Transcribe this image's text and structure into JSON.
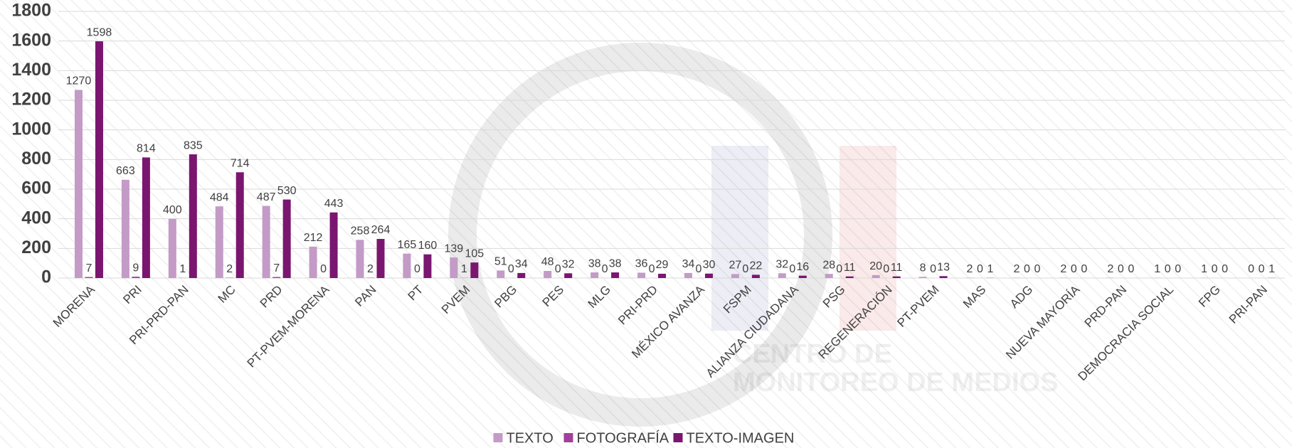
{
  "chart_data": {
    "type": "bar",
    "categories": [
      "MORENA",
      "PRI",
      "PRI-PRD-PAN",
      "MC",
      "PRD",
      "PT-PVEM-MORENA",
      "PAN",
      "PT",
      "PVEM",
      "PBG",
      "PES",
      "MLG",
      "PRI-PRD",
      "MÉXICO AVANZA",
      "FSPM",
      "ALIANZA CIUDADANA",
      "PSG",
      "REGENERACIÓN",
      "PT-PVEM",
      "MAS",
      "ADG",
      "NUEVA MAYORÍA",
      "PRD-PAN",
      "DEMOCRACIA SOCIAL",
      "FPG",
      "PRI-PAN"
    ],
    "series": [
      {
        "name": "TEXTO",
        "color": "#c39bc6",
        "values": [
          1270,
          663,
          400,
          484,
          487,
          212,
          258,
          165,
          139,
          51,
          48,
          38,
          36,
          34,
          27,
          32,
          28,
          20,
          8,
          2,
          2,
          2,
          2,
          1,
          1,
          0
        ]
      },
      {
        "name": "FOTOGRAFÍA",
        "color": "#a0409c",
        "values": [
          7,
          9,
          1,
          2,
          7,
          0,
          2,
          0,
          1,
          0,
          0,
          0,
          0,
          0,
          0,
          0,
          0,
          0,
          0,
          0,
          0,
          0,
          0,
          0,
          0,
          0
        ]
      },
      {
        "name": "TEXTO-IMAGEN",
        "color": "#7a1670",
        "values": [
          1598,
          814,
          835,
          714,
          530,
          443,
          264,
          160,
          105,
          34,
          32,
          38,
          29,
          30,
          22,
          16,
          11,
          11,
          13,
          1,
          0,
          0,
          0,
          0,
          0,
          1
        ]
      }
    ],
    "ylim": [
      0,
      1800
    ],
    "yticks": [
      0,
      200,
      400,
      600,
      800,
      1000,
      1200,
      1400,
      1600,
      1800
    ],
    "grid": true,
    "legend": "bottom",
    "watermark": [
      "CENTRO DE",
      "MONITOREO DE MEDIOS"
    ]
  }
}
